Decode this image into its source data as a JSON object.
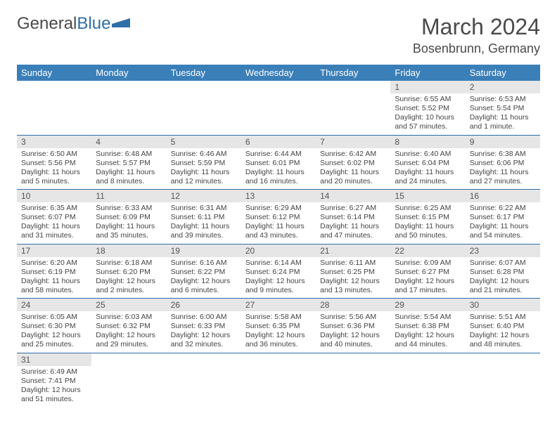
{
  "logo": {
    "text1": "General",
    "text2": "Blue"
  },
  "title": "March 2024",
  "location": "Bosenbrunn, Germany",
  "colors": {
    "header_bg": "#3b7fb8",
    "header_text": "#ffffff",
    "daynum_bg": "#e6e6e6",
    "row_border": "#2f6fa7",
    "logo_accent": "#2f6fa7",
    "text": "#4a4a4a"
  },
  "day_headers": [
    "Sunday",
    "Monday",
    "Tuesday",
    "Wednesday",
    "Thursday",
    "Friday",
    "Saturday"
  ],
  "weeks": [
    [
      null,
      null,
      null,
      null,
      null,
      {
        "n": "1",
        "sr": "Sunrise: 6:55 AM",
        "ss": "Sunset: 5:52 PM",
        "dl": "Daylight: 10 hours and 57 minutes."
      },
      {
        "n": "2",
        "sr": "Sunrise: 6:53 AM",
        "ss": "Sunset: 5:54 PM",
        "dl": "Daylight: 11 hours and 1 minute."
      }
    ],
    [
      {
        "n": "3",
        "sr": "Sunrise: 6:50 AM",
        "ss": "Sunset: 5:56 PM",
        "dl": "Daylight: 11 hours and 5 minutes."
      },
      {
        "n": "4",
        "sr": "Sunrise: 6:48 AM",
        "ss": "Sunset: 5:57 PM",
        "dl": "Daylight: 11 hours and 8 minutes."
      },
      {
        "n": "5",
        "sr": "Sunrise: 6:46 AM",
        "ss": "Sunset: 5:59 PM",
        "dl": "Daylight: 11 hours and 12 minutes."
      },
      {
        "n": "6",
        "sr": "Sunrise: 6:44 AM",
        "ss": "Sunset: 6:01 PM",
        "dl": "Daylight: 11 hours and 16 minutes."
      },
      {
        "n": "7",
        "sr": "Sunrise: 6:42 AM",
        "ss": "Sunset: 6:02 PM",
        "dl": "Daylight: 11 hours and 20 minutes."
      },
      {
        "n": "8",
        "sr": "Sunrise: 6:40 AM",
        "ss": "Sunset: 6:04 PM",
        "dl": "Daylight: 11 hours and 24 minutes."
      },
      {
        "n": "9",
        "sr": "Sunrise: 6:38 AM",
        "ss": "Sunset: 6:06 PM",
        "dl": "Daylight: 11 hours and 27 minutes."
      }
    ],
    [
      {
        "n": "10",
        "sr": "Sunrise: 6:35 AM",
        "ss": "Sunset: 6:07 PM",
        "dl": "Daylight: 11 hours and 31 minutes."
      },
      {
        "n": "11",
        "sr": "Sunrise: 6:33 AM",
        "ss": "Sunset: 6:09 PM",
        "dl": "Daylight: 11 hours and 35 minutes."
      },
      {
        "n": "12",
        "sr": "Sunrise: 6:31 AM",
        "ss": "Sunset: 6:11 PM",
        "dl": "Daylight: 11 hours and 39 minutes."
      },
      {
        "n": "13",
        "sr": "Sunrise: 6:29 AM",
        "ss": "Sunset: 6:12 PM",
        "dl": "Daylight: 11 hours and 43 minutes."
      },
      {
        "n": "14",
        "sr": "Sunrise: 6:27 AM",
        "ss": "Sunset: 6:14 PM",
        "dl": "Daylight: 11 hours and 47 minutes."
      },
      {
        "n": "15",
        "sr": "Sunrise: 6:25 AM",
        "ss": "Sunset: 6:15 PM",
        "dl": "Daylight: 11 hours and 50 minutes."
      },
      {
        "n": "16",
        "sr": "Sunrise: 6:22 AM",
        "ss": "Sunset: 6:17 PM",
        "dl": "Daylight: 11 hours and 54 minutes."
      }
    ],
    [
      {
        "n": "17",
        "sr": "Sunrise: 6:20 AM",
        "ss": "Sunset: 6:19 PM",
        "dl": "Daylight: 11 hours and 58 minutes."
      },
      {
        "n": "18",
        "sr": "Sunrise: 6:18 AM",
        "ss": "Sunset: 6:20 PM",
        "dl": "Daylight: 12 hours and 2 minutes."
      },
      {
        "n": "19",
        "sr": "Sunrise: 6:16 AM",
        "ss": "Sunset: 6:22 PM",
        "dl": "Daylight: 12 hours and 6 minutes."
      },
      {
        "n": "20",
        "sr": "Sunrise: 6:14 AM",
        "ss": "Sunset: 6:24 PM",
        "dl": "Daylight: 12 hours and 9 minutes."
      },
      {
        "n": "21",
        "sr": "Sunrise: 6:11 AM",
        "ss": "Sunset: 6:25 PM",
        "dl": "Daylight: 12 hours and 13 minutes."
      },
      {
        "n": "22",
        "sr": "Sunrise: 6:09 AM",
        "ss": "Sunset: 6:27 PM",
        "dl": "Daylight: 12 hours and 17 minutes."
      },
      {
        "n": "23",
        "sr": "Sunrise: 6:07 AM",
        "ss": "Sunset: 6:28 PM",
        "dl": "Daylight: 12 hours and 21 minutes."
      }
    ],
    [
      {
        "n": "24",
        "sr": "Sunrise: 6:05 AM",
        "ss": "Sunset: 6:30 PM",
        "dl": "Daylight: 12 hours and 25 minutes."
      },
      {
        "n": "25",
        "sr": "Sunrise: 6:03 AM",
        "ss": "Sunset: 6:32 PM",
        "dl": "Daylight: 12 hours and 29 minutes."
      },
      {
        "n": "26",
        "sr": "Sunrise: 6:00 AM",
        "ss": "Sunset: 6:33 PM",
        "dl": "Daylight: 12 hours and 32 minutes."
      },
      {
        "n": "27",
        "sr": "Sunrise: 5:58 AM",
        "ss": "Sunset: 6:35 PM",
        "dl": "Daylight: 12 hours and 36 minutes."
      },
      {
        "n": "28",
        "sr": "Sunrise: 5:56 AM",
        "ss": "Sunset: 6:36 PM",
        "dl": "Daylight: 12 hours and 40 minutes."
      },
      {
        "n": "29",
        "sr": "Sunrise: 5:54 AM",
        "ss": "Sunset: 6:38 PM",
        "dl": "Daylight: 12 hours and 44 minutes."
      },
      {
        "n": "30",
        "sr": "Sunrise: 5:51 AM",
        "ss": "Sunset: 6:40 PM",
        "dl": "Daylight: 12 hours and 48 minutes."
      }
    ],
    [
      {
        "n": "31",
        "sr": "Sunrise: 6:49 AM",
        "ss": "Sunset: 7:41 PM",
        "dl": "Daylight: 12 hours and 51 minutes."
      },
      null,
      null,
      null,
      null,
      null,
      null
    ]
  ]
}
